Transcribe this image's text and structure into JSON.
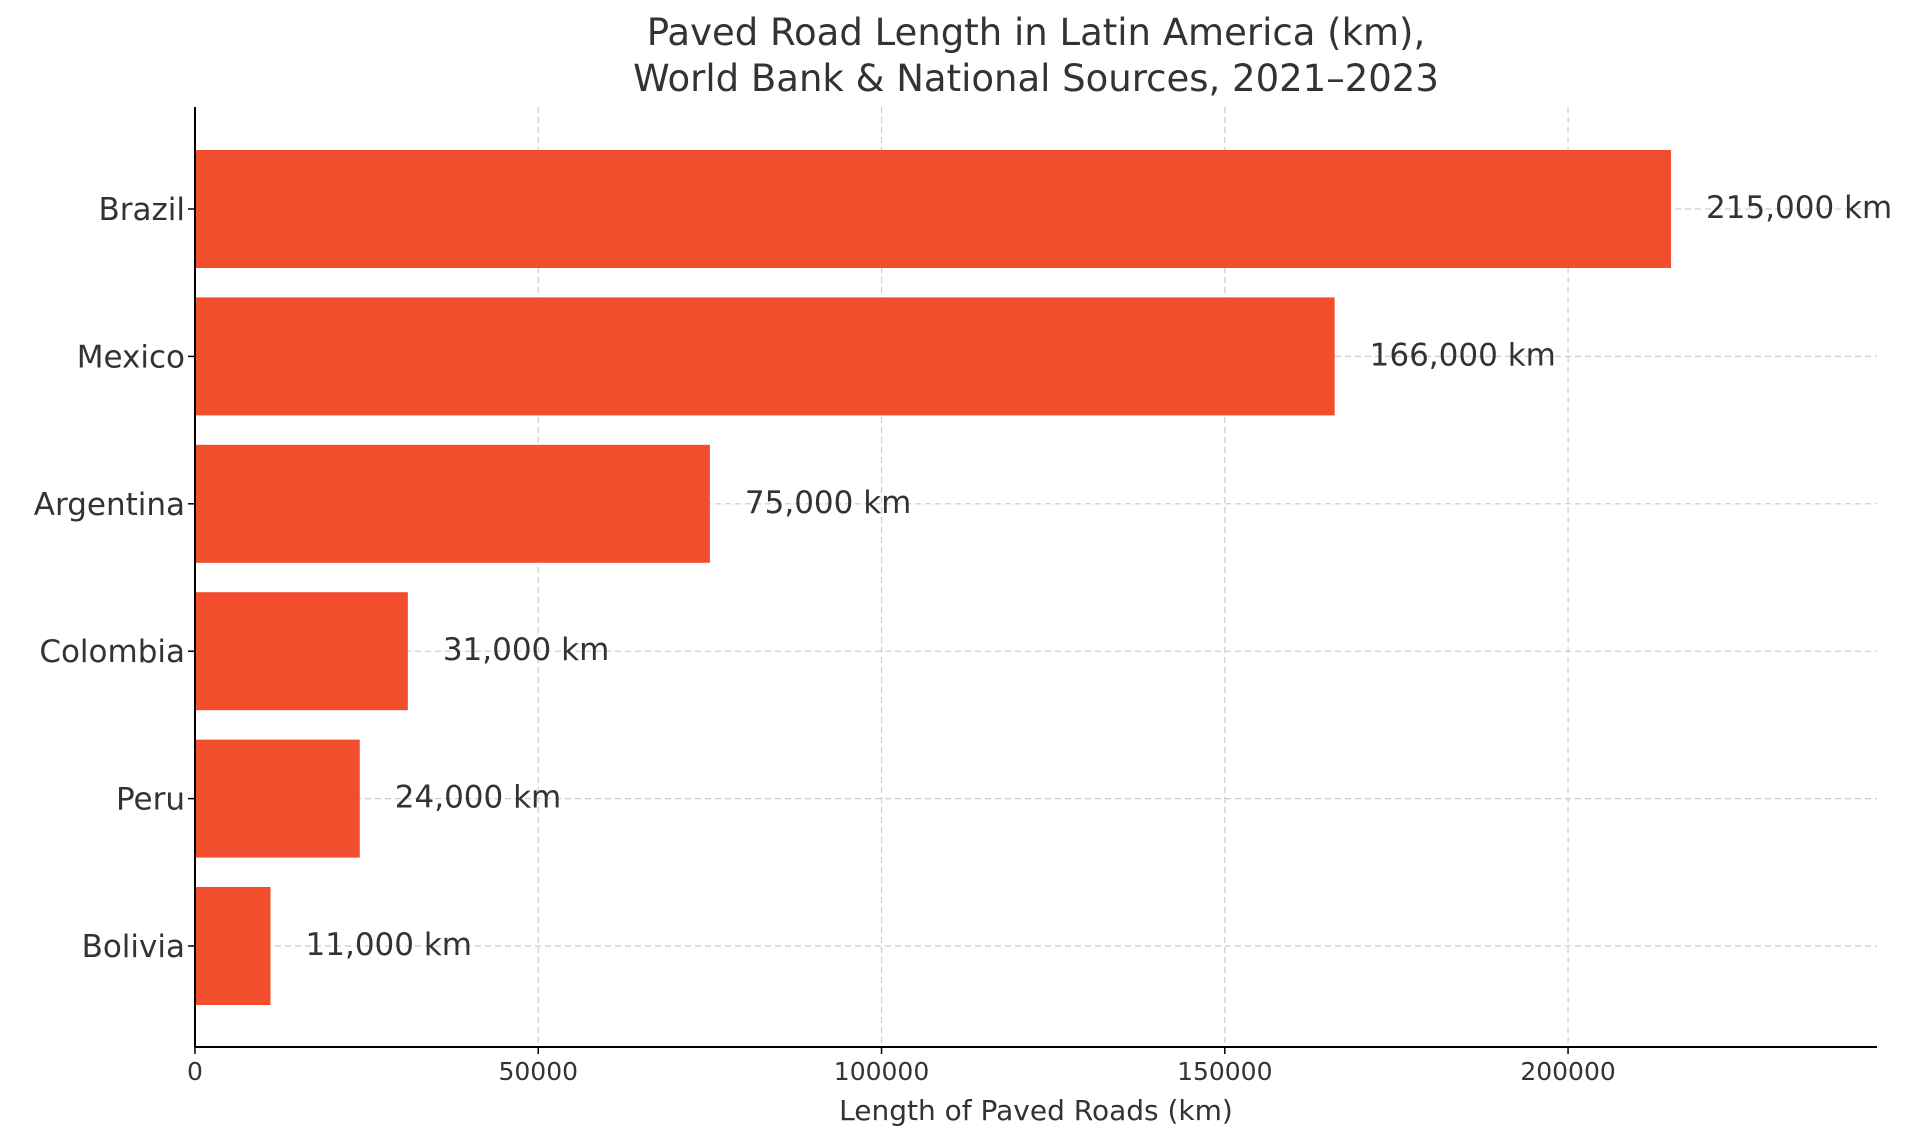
{
  "chart_data": {
    "type": "bar",
    "orientation": "horizontal",
    "title_lines": [
      "Paved Road Length in Latin America (km),",
      "World Bank & National Sources, 2021–2023"
    ],
    "xlabel": "Length of Paved Roads (km)",
    "ylabel": "",
    "categories": [
      "Brazil",
      "Mexico",
      "Argentina",
      "Colombia",
      "Peru",
      "Bolivia"
    ],
    "values": [
      215000,
      166000,
      75000,
      31000,
      24000,
      11000
    ],
    "data_labels": [
      "215,000 km",
      "166,000 km",
      "75,000 km",
      "31,000 km",
      "24,000 km",
      "11,000 km"
    ],
    "xlim": [
      0,
      245000
    ],
    "xticks": [
      0,
      50000,
      100000,
      150000,
      200000
    ],
    "xtick_labels": [
      "0",
      "50000",
      "100000",
      "150000",
      "200000"
    ],
    "grid": true,
    "bar_color": "#f24e2e",
    "grid_color": "#cccccc",
    "axis_color": "#000000",
    "text_color": "#333333"
  }
}
